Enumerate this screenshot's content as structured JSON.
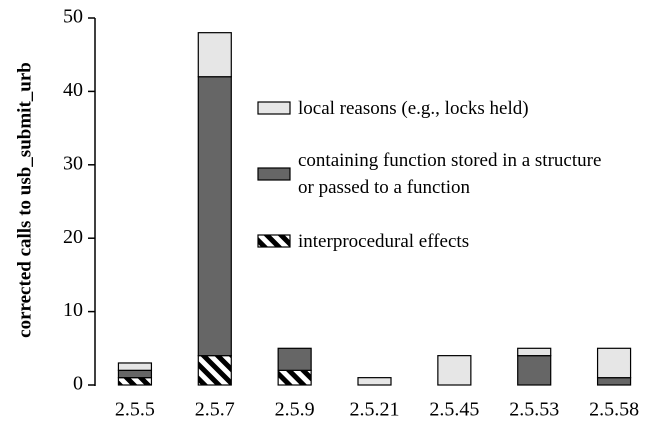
{
  "chart_data": {
    "type": "stacked_bar",
    "y_label": "corrected calls to usb_submit_urb",
    "categories": [
      "2.5.5",
      "2.5.7",
      "2.5.9",
      "2.5.21",
      "2.5.45",
      "2.5.53",
      "2.5.58"
    ],
    "series": [
      {
        "name": "local reasons (e.g., locks held)",
        "color": "#e6e6e6",
        "values": [
          1,
          6,
          0,
          1,
          4,
          1,
          4
        ]
      },
      {
        "name": "containing function stored in a structure or passed to a function",
        "color": "#666666",
        "values": [
          1,
          38,
          3,
          0,
          0,
          4,
          1
        ]
      },
      {
        "name": "interprocedural effects",
        "color": "#000000",
        "hatch": true,
        "values": [
          1,
          4,
          2,
          0,
          0,
          0,
          0
        ]
      }
    ],
    "ylim": [
      0,
      50
    ],
    "yticks": [
      0,
      10,
      20,
      30,
      40,
      50
    ],
    "grid": false
  }
}
